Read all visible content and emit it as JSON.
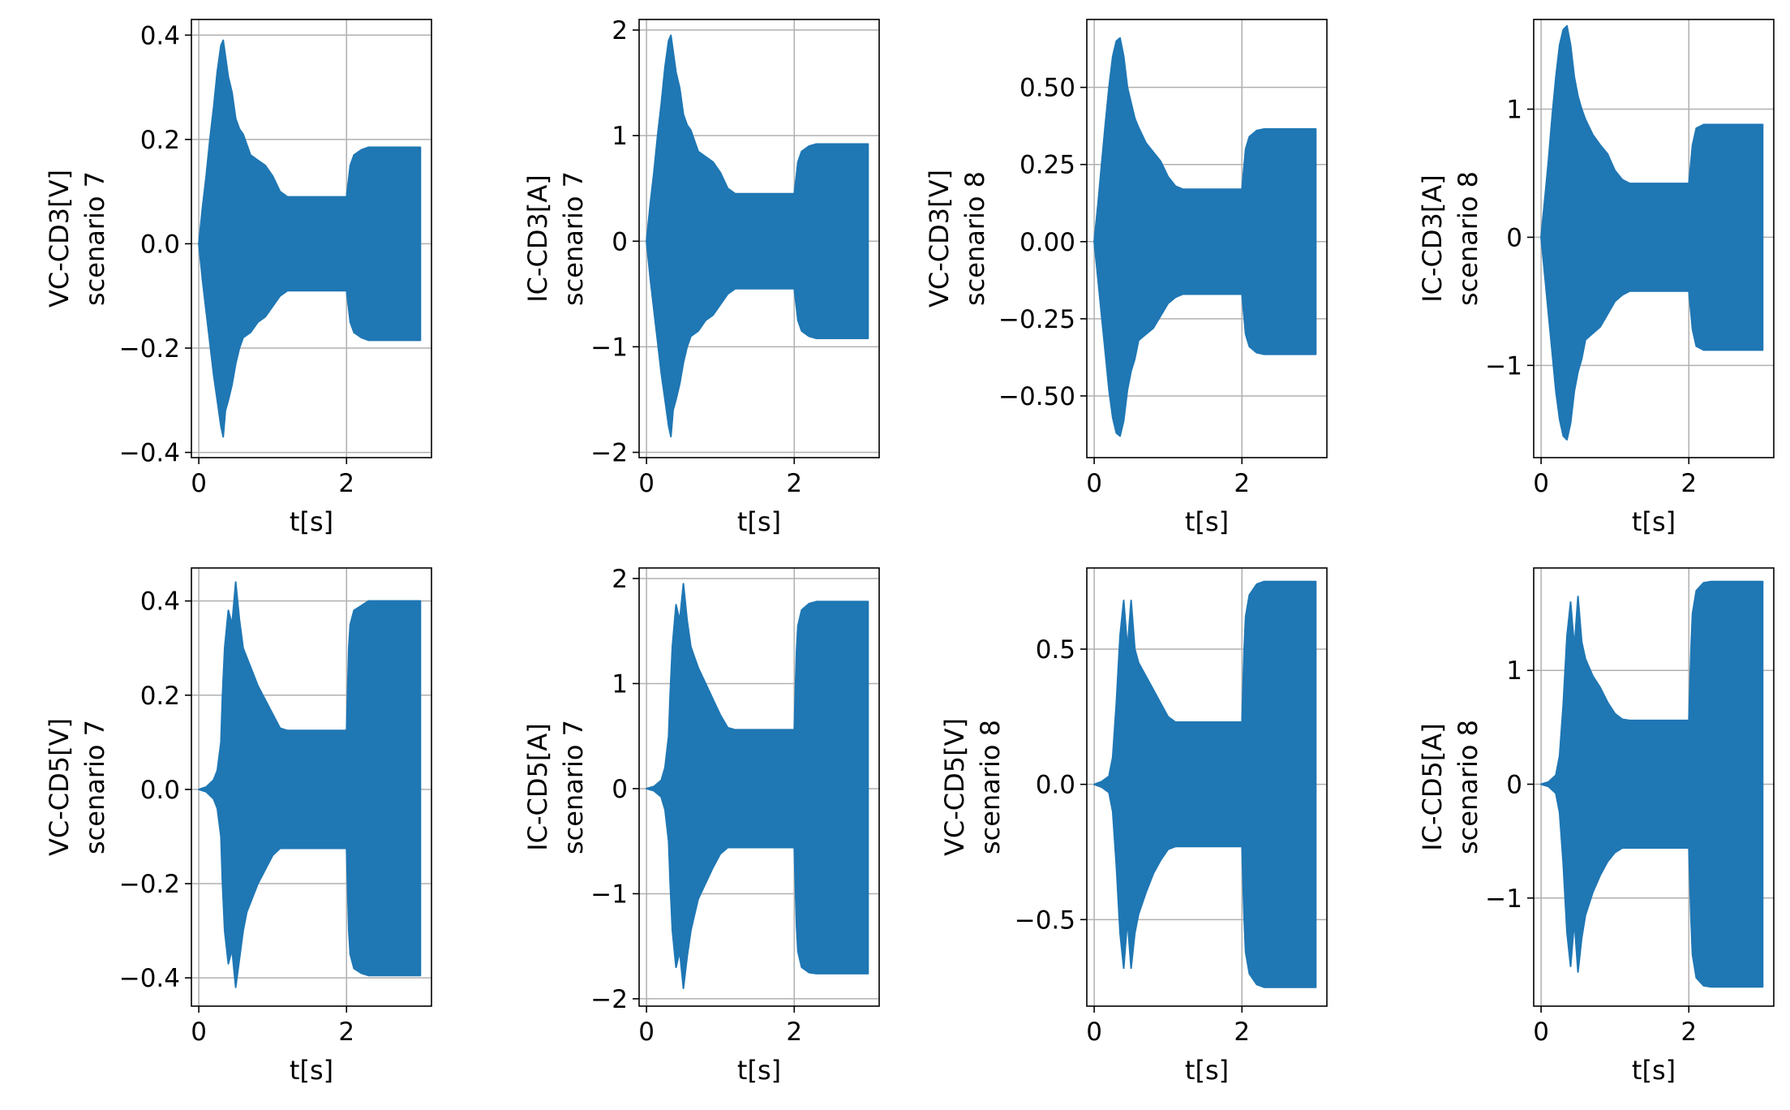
{
  "colors": {
    "series": "#1f77b4",
    "grid": "#b0b0b0",
    "axis": "#000000"
  },
  "chart_data": [
    {
      "type": "area",
      "xlabel": "t[s]",
      "ylabel_lines": [
        "VC-CD3[V]",
        "scenario 7"
      ],
      "xlim": [
        -0.1,
        3.15
      ],
      "ylim": [
        -0.41,
        0.43
      ],
      "xticks": [
        0,
        2
      ],
      "xtick_labels": [
        "0",
        "2"
      ],
      "yticks": [
        -0.4,
        -0.2,
        0.0,
        0.2,
        0.4
      ],
      "ytick_labels": [
        "−0.4",
        "−0.2",
        "0.0",
        "0.2",
        "0.4"
      ],
      "grid": true,
      "envelope": {
        "t": [
          0,
          0.05,
          0.1,
          0.15,
          0.2,
          0.25,
          0.3,
          0.33,
          0.36,
          0.4,
          0.45,
          0.5,
          0.55,
          0.6,
          0.7,
          0.8,
          0.9,
          1.0,
          1.1,
          1.2,
          1.5,
          1.9,
          2.0,
          2.05,
          2.1,
          2.2,
          2.3,
          2.5,
          2.8,
          3.0
        ],
        "upper": [
          0.0,
          0.07,
          0.13,
          0.2,
          0.26,
          0.33,
          0.38,
          0.39,
          0.36,
          0.32,
          0.29,
          0.24,
          0.22,
          0.21,
          0.17,
          0.16,
          0.15,
          0.13,
          0.1,
          0.09,
          0.09,
          0.09,
          0.09,
          0.15,
          0.17,
          0.18,
          0.185,
          0.185,
          0.185,
          0.185
        ],
        "lower": [
          0.0,
          -0.07,
          -0.13,
          -0.19,
          -0.25,
          -0.3,
          -0.35,
          -0.37,
          -0.32,
          -0.3,
          -0.27,
          -0.23,
          -0.2,
          -0.18,
          -0.17,
          -0.15,
          -0.14,
          -0.12,
          -0.1,
          -0.09,
          -0.09,
          -0.09,
          -0.09,
          -0.15,
          -0.17,
          -0.18,
          -0.185,
          -0.185,
          -0.185,
          -0.185
        ]
      }
    },
    {
      "type": "area",
      "xlabel": "t[s]",
      "ylabel_lines": [
        "IC-CD3[A]",
        "scenario 7"
      ],
      "xlim": [
        -0.1,
        3.15
      ],
      "ylim": [
        -2.05,
        2.1
      ],
      "xticks": [
        0,
        2
      ],
      "xtick_labels": [
        "0",
        "2"
      ],
      "yticks": [
        -2,
        -1,
        0,
        1,
        2
      ],
      "ytick_labels": [
        "−2",
        "−1",
        "0",
        "1",
        "2"
      ],
      "grid": true,
      "envelope": {
        "t": [
          0,
          0.05,
          0.1,
          0.15,
          0.2,
          0.25,
          0.3,
          0.33,
          0.36,
          0.4,
          0.45,
          0.5,
          0.55,
          0.6,
          0.7,
          0.8,
          0.9,
          1.0,
          1.1,
          1.2,
          1.5,
          1.9,
          2.0,
          2.05,
          2.1,
          2.2,
          2.3,
          2.5,
          2.8,
          3.0
        ],
        "upper": [
          0.0,
          0.35,
          0.65,
          1.0,
          1.3,
          1.65,
          1.9,
          1.95,
          1.8,
          1.6,
          1.45,
          1.2,
          1.1,
          1.05,
          0.85,
          0.8,
          0.75,
          0.65,
          0.5,
          0.45,
          0.45,
          0.45,
          0.45,
          0.75,
          0.85,
          0.9,
          0.92,
          0.92,
          0.92,
          0.92
        ],
        "lower": [
          0.0,
          -0.35,
          -0.65,
          -0.95,
          -1.25,
          -1.5,
          -1.75,
          -1.85,
          -1.6,
          -1.5,
          -1.35,
          -1.15,
          -1.0,
          -0.9,
          -0.85,
          -0.75,
          -0.7,
          -0.6,
          -0.5,
          -0.45,
          -0.45,
          -0.45,
          -0.45,
          -0.75,
          -0.85,
          -0.9,
          -0.92,
          -0.92,
          -0.92,
          -0.92
        ]
      }
    },
    {
      "type": "area",
      "xlabel": "t[s]",
      "ylabel_lines": [
        "VC-CD3[V]",
        "scenario 8"
      ],
      "xlim": [
        -0.1,
        3.15
      ],
      "ylim": [
        -0.7,
        0.72
      ],
      "xticks": [
        0,
        2
      ],
      "xtick_labels": [
        "0",
        "2"
      ],
      "yticks": [
        -0.5,
        -0.25,
        0.0,
        0.25,
        0.5
      ],
      "ytick_labels": [
        "−0.50",
        "−0.25",
        "0.00",
        "0.25",
        "0.50"
      ],
      "grid": true,
      "envelope": {
        "t": [
          0,
          0.05,
          0.1,
          0.15,
          0.2,
          0.25,
          0.3,
          0.35,
          0.4,
          0.45,
          0.5,
          0.55,
          0.6,
          0.7,
          0.8,
          0.9,
          1.0,
          1.1,
          1.2,
          1.5,
          1.9,
          2.0,
          2.05,
          2.1,
          2.2,
          2.3,
          2.5,
          2.8,
          3.0
        ],
        "upper": [
          0.0,
          0.12,
          0.25,
          0.38,
          0.5,
          0.6,
          0.65,
          0.66,
          0.6,
          0.5,
          0.45,
          0.4,
          0.37,
          0.32,
          0.29,
          0.26,
          0.21,
          0.18,
          0.17,
          0.17,
          0.17,
          0.17,
          0.3,
          0.34,
          0.36,
          0.365,
          0.365,
          0.365,
          0.365
        ],
        "lower": [
          0.0,
          -0.12,
          -0.24,
          -0.36,
          -0.48,
          -0.57,
          -0.62,
          -0.63,
          -0.58,
          -0.48,
          -0.42,
          -0.38,
          -0.32,
          -0.3,
          -0.28,
          -0.24,
          -0.2,
          -0.18,
          -0.17,
          -0.17,
          -0.17,
          -0.17,
          -0.3,
          -0.34,
          -0.36,
          -0.365,
          -0.365,
          -0.365,
          -0.365
        ]
      }
    },
    {
      "type": "area",
      "xlabel": "t[s]",
      "ylabel_lines": [
        "IC-CD3[A]",
        "scenario 8"
      ],
      "xlim": [
        -0.1,
        3.15
      ],
      "ylim": [
        -1.72,
        1.7
      ],
      "xticks": [
        0,
        2
      ],
      "xtick_labels": [
        "0",
        "2"
      ],
      "yticks": [
        -1,
        0,
        1
      ],
      "ytick_labels": [
        "−1",
        "0",
        "1"
      ],
      "grid": true,
      "envelope": {
        "t": [
          0,
          0.05,
          0.1,
          0.15,
          0.2,
          0.25,
          0.3,
          0.35,
          0.4,
          0.45,
          0.5,
          0.55,
          0.6,
          0.7,
          0.8,
          0.9,
          1.0,
          1.1,
          1.2,
          1.5,
          1.9,
          2.0,
          2.05,
          2.1,
          2.2,
          2.3,
          2.5,
          2.8,
          3.0
        ],
        "upper": [
          0.0,
          0.3,
          0.6,
          0.95,
          1.25,
          1.5,
          1.62,
          1.65,
          1.5,
          1.25,
          1.1,
          1.0,
          0.92,
          0.8,
          0.72,
          0.65,
          0.52,
          0.45,
          0.42,
          0.42,
          0.42,
          0.42,
          0.72,
          0.85,
          0.88,
          0.88,
          0.88,
          0.88,
          0.88
        ],
        "lower": [
          0.0,
          -0.3,
          -0.6,
          -0.9,
          -1.2,
          -1.42,
          -1.55,
          -1.58,
          -1.45,
          -1.2,
          -1.05,
          -0.95,
          -0.8,
          -0.75,
          -0.7,
          -0.6,
          -0.5,
          -0.45,
          -0.42,
          -0.42,
          -0.42,
          -0.42,
          -0.72,
          -0.85,
          -0.88,
          -0.88,
          -0.88,
          -0.88,
          -0.88
        ]
      }
    },
    {
      "type": "area",
      "xlabel": "t[s]",
      "ylabel_lines": [
        "VC-CD5[V]",
        "scenario 7"
      ],
      "xlim": [
        -0.1,
        3.15
      ],
      "ylim": [
        -0.46,
        0.47
      ],
      "xticks": [
        0,
        2
      ],
      "xtick_labels": [
        "0",
        "2"
      ],
      "yticks": [
        -0.4,
        -0.2,
        0.0,
        0.2,
        0.4
      ],
      "ytick_labels": [
        "−0.4",
        "−0.2",
        "0.0",
        "0.2",
        "0.4"
      ],
      "grid": true,
      "envelope": {
        "t": [
          0,
          0.1,
          0.2,
          0.25,
          0.3,
          0.32,
          0.35,
          0.4,
          0.45,
          0.5,
          0.55,
          0.6,
          0.65,
          0.7,
          0.8,
          0.9,
          1.0,
          1.1,
          1.2,
          1.5,
          1.9,
          2.0,
          2.03,
          2.05,
          2.1,
          2.2,
          2.3,
          2.5,
          2.8,
          3.0
        ],
        "upper": [
          0.0,
          0.005,
          0.02,
          0.04,
          0.1,
          0.2,
          0.3,
          0.38,
          0.35,
          0.44,
          0.36,
          0.3,
          0.28,
          0.26,
          0.22,
          0.19,
          0.16,
          0.13,
          0.125,
          0.125,
          0.125,
          0.125,
          0.3,
          0.35,
          0.38,
          0.39,
          0.4,
          0.4,
          0.4,
          0.4
        ],
        "lower": [
          0.0,
          -0.005,
          -0.02,
          -0.04,
          -0.1,
          -0.2,
          -0.3,
          -0.37,
          -0.34,
          -0.42,
          -0.36,
          -0.3,
          -0.26,
          -0.24,
          -0.2,
          -0.17,
          -0.14,
          -0.125,
          -0.125,
          -0.125,
          -0.125,
          -0.125,
          -0.3,
          -0.35,
          -0.38,
          -0.39,
          -0.395,
          -0.395,
          -0.395,
          -0.395
        ]
      }
    },
    {
      "type": "area",
      "xlabel": "t[s]",
      "ylabel_lines": [
        "IC-CD5[A]",
        "scenario 7"
      ],
      "xlim": [
        -0.1,
        3.15
      ],
      "ylim": [
        -2.07,
        2.1
      ],
      "xticks": [
        0,
        2
      ],
      "xtick_labels": [
        "0",
        "2"
      ],
      "yticks": [
        -2,
        -1,
        0,
        1,
        2
      ],
      "ytick_labels": [
        "−2",
        "−1",
        "0",
        "1",
        "2"
      ],
      "grid": true,
      "envelope": {
        "t": [
          0,
          0.1,
          0.2,
          0.25,
          0.3,
          0.32,
          0.35,
          0.4,
          0.45,
          0.5,
          0.55,
          0.6,
          0.65,
          0.7,
          0.8,
          0.9,
          1.0,
          1.1,
          1.2,
          1.5,
          1.9,
          2.0,
          2.03,
          2.05,
          2.1,
          2.2,
          2.3,
          2.5,
          2.8,
          3.0
        ],
        "upper": [
          0.0,
          0.02,
          0.08,
          0.2,
          0.5,
          0.9,
          1.35,
          1.75,
          1.6,
          1.95,
          1.6,
          1.35,
          1.25,
          1.15,
          1.0,
          0.85,
          0.7,
          0.58,
          0.56,
          0.56,
          0.56,
          0.56,
          1.3,
          1.55,
          1.7,
          1.76,
          1.78,
          1.78,
          1.78,
          1.78
        ],
        "lower": [
          0.0,
          -0.02,
          -0.08,
          -0.2,
          -0.5,
          -0.9,
          -1.35,
          -1.7,
          -1.55,
          -1.9,
          -1.6,
          -1.35,
          -1.2,
          -1.05,
          -0.9,
          -0.75,
          -0.62,
          -0.56,
          -0.56,
          -0.56,
          -0.56,
          -0.56,
          -1.3,
          -1.55,
          -1.7,
          -1.75,
          -1.76,
          -1.76,
          -1.76,
          -1.76
        ]
      }
    },
    {
      "type": "area",
      "xlabel": "t[s]",
      "ylabel_lines": [
        "VC-CD5[V]",
        "scenario 8"
      ],
      "xlim": [
        -0.1,
        3.15
      ],
      "ylim": [
        -0.82,
        0.8
      ],
      "xticks": [
        0,
        2
      ],
      "xtick_labels": [
        "0",
        "2"
      ],
      "yticks": [
        -0.5,
        0.0,
        0.5
      ],
      "ytick_labels": [
        "−0.5",
        "0.0",
        "0.5"
      ],
      "grid": true,
      "envelope": {
        "t": [
          0,
          0.1,
          0.2,
          0.25,
          0.3,
          0.35,
          0.4,
          0.45,
          0.5,
          0.55,
          0.6,
          0.7,
          0.8,
          0.9,
          1.0,
          1.1,
          1.2,
          1.5,
          1.9,
          2.0,
          2.03,
          2.05,
          2.1,
          2.2,
          2.3,
          2.5,
          2.8,
          3.0
        ],
        "upper": [
          0.0,
          0.01,
          0.03,
          0.1,
          0.3,
          0.55,
          0.68,
          0.5,
          0.68,
          0.5,
          0.45,
          0.4,
          0.35,
          0.3,
          0.25,
          0.23,
          0.23,
          0.23,
          0.23,
          0.23,
          0.5,
          0.62,
          0.7,
          0.74,
          0.75,
          0.75,
          0.75,
          0.75
        ],
        "lower": [
          0.0,
          -0.01,
          -0.03,
          -0.1,
          -0.3,
          -0.55,
          -0.68,
          -0.5,
          -0.68,
          -0.55,
          -0.48,
          -0.4,
          -0.33,
          -0.28,
          -0.24,
          -0.23,
          -0.23,
          -0.23,
          -0.23,
          -0.23,
          -0.5,
          -0.62,
          -0.7,
          -0.74,
          -0.75,
          -0.75,
          -0.75,
          -0.75
        ]
      }
    },
    {
      "type": "area",
      "xlabel": "t[s]",
      "ylabel_lines": [
        "IC-CD5[A]",
        "scenario 8"
      ],
      "xlim": [
        -0.1,
        3.15
      ],
      "ylim": [
        -1.95,
        1.9
      ],
      "xticks": [
        0,
        2
      ],
      "xtick_labels": [
        "0",
        "2"
      ],
      "yticks": [
        -1,
        0,
        1
      ],
      "ytick_labels": [
        "−1",
        "0",
        "1"
      ],
      "grid": true,
      "envelope": {
        "t": [
          0,
          0.1,
          0.2,
          0.25,
          0.3,
          0.35,
          0.4,
          0.45,
          0.5,
          0.55,
          0.6,
          0.7,
          0.8,
          0.9,
          1.0,
          1.1,
          1.2,
          1.5,
          1.9,
          2.0,
          2.03,
          2.05,
          2.1,
          2.2,
          2.3,
          2.5,
          2.8,
          3.0
        ],
        "upper": [
          0.0,
          0.02,
          0.08,
          0.25,
          0.7,
          1.3,
          1.6,
          1.2,
          1.65,
          1.25,
          1.1,
          0.95,
          0.85,
          0.72,
          0.62,
          0.57,
          0.56,
          0.56,
          0.56,
          0.56,
          1.2,
          1.5,
          1.7,
          1.77,
          1.78,
          1.78,
          1.78,
          1.78
        ],
        "lower": [
          0.0,
          -0.02,
          -0.08,
          -0.25,
          -0.7,
          -1.3,
          -1.6,
          -1.2,
          -1.65,
          -1.35,
          -1.15,
          -0.95,
          -0.8,
          -0.68,
          -0.6,
          -0.56,
          -0.56,
          -0.56,
          -0.56,
          -0.56,
          -1.2,
          -1.5,
          -1.7,
          -1.77,
          -1.78,
          -1.78,
          -1.78,
          -1.78
        ]
      }
    }
  ]
}
